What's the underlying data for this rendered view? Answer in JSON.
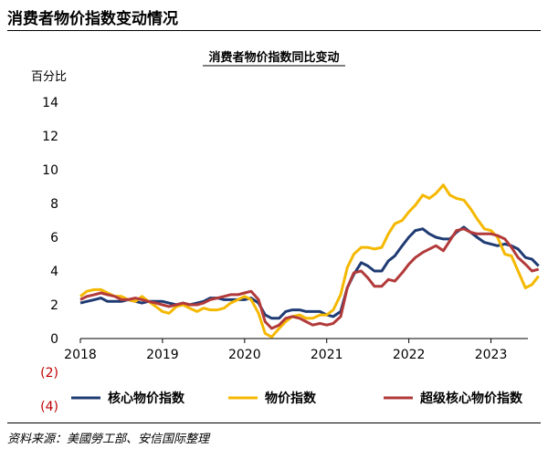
{
  "page": {
    "title": "消费者物价指数变动情况",
    "source": "资料来源：美國勞工部、安信国际整理"
  },
  "chart_data": {
    "type": "line",
    "title": "消费者物价指数同比变动",
    "yunit": "百分比",
    "ylim": [
      -4,
      14
    ],
    "yticks": [
      14,
      12,
      10,
      8,
      6,
      4,
      2,
      0,
      -2,
      -4
    ],
    "ytick_labels": [
      "14",
      "12",
      "10",
      "8",
      "6",
      "4",
      "2",
      "0",
      "(2)",
      "(4)"
    ],
    "xlim": [
      2018.0,
      2023.45
    ],
    "xticks": [
      2018,
      2019,
      2020,
      2021,
      2022,
      2023
    ],
    "xtick_labels": [
      "2018",
      "2019",
      "2020",
      "2021",
      "2022",
      "2023"
    ],
    "legend_position": "bottom",
    "series": [
      {
        "name": "核心物价指数",
        "color": "#1f3b73",
        "points": [
          [
            2018.0,
            2.1
          ],
          [
            2018.08,
            2.2
          ],
          [
            2018.17,
            2.3
          ],
          [
            2018.25,
            2.4
          ],
          [
            2018.33,
            2.2
          ],
          [
            2018.42,
            2.2
          ],
          [
            2018.5,
            2.2
          ],
          [
            2018.58,
            2.3
          ],
          [
            2018.67,
            2.2
          ],
          [
            2018.75,
            2.1
          ],
          [
            2018.83,
            2.2
          ],
          [
            2018.92,
            2.2
          ],
          [
            2019.0,
            2.2
          ],
          [
            2019.08,
            2.1
          ],
          [
            2019.17,
            2.0
          ],
          [
            2019.25,
            2.1
          ],
          [
            2019.33,
            2.0
          ],
          [
            2019.42,
            2.1
          ],
          [
            2019.5,
            2.2
          ],
          [
            2019.58,
            2.4
          ],
          [
            2019.67,
            2.4
          ],
          [
            2019.75,
            2.3
          ],
          [
            2019.83,
            2.3
          ],
          [
            2019.92,
            2.3
          ],
          [
            2020.0,
            2.3
          ],
          [
            2020.08,
            2.4
          ],
          [
            2020.17,
            2.1
          ],
          [
            2020.25,
            1.4
          ],
          [
            2020.33,
            1.2
          ],
          [
            2020.42,
            1.2
          ],
          [
            2020.5,
            1.6
          ],
          [
            2020.58,
            1.7
          ],
          [
            2020.67,
            1.7
          ],
          [
            2020.75,
            1.6
          ],
          [
            2020.83,
            1.6
          ],
          [
            2020.92,
            1.6
          ],
          [
            2021.0,
            1.4
          ],
          [
            2021.08,
            1.3
          ],
          [
            2021.17,
            1.6
          ],
          [
            2021.25,
            3.0
          ],
          [
            2021.33,
            3.8
          ],
          [
            2021.42,
            4.5
          ],
          [
            2021.5,
            4.3
          ],
          [
            2021.58,
            4.0
          ],
          [
            2021.67,
            4.0
          ],
          [
            2021.75,
            4.6
          ],
          [
            2021.83,
            4.9
          ],
          [
            2021.92,
            5.5
          ],
          [
            2022.0,
            6.0
          ],
          [
            2022.08,
            6.4
          ],
          [
            2022.17,
            6.5
          ],
          [
            2022.25,
            6.2
          ],
          [
            2022.33,
            6.0
          ],
          [
            2022.42,
            5.9
          ],
          [
            2022.5,
            5.9
          ],
          [
            2022.58,
            6.3
          ],
          [
            2022.67,
            6.6
          ],
          [
            2022.75,
            6.3
          ],
          [
            2022.83,
            6.0
          ],
          [
            2022.92,
            5.7
          ],
          [
            2023.0,
            5.6
          ],
          [
            2023.08,
            5.5
          ],
          [
            2023.17,
            5.6
          ],
          [
            2023.25,
            5.5
          ],
          [
            2023.33,
            5.3
          ],
          [
            2023.42,
            4.8
          ],
          [
            2023.5,
            4.7
          ],
          [
            2023.58,
            4.3
          ]
        ]
      },
      {
        "name": "物价指数",
        "color": "#f5b800",
        "points": [
          [
            2018.0,
            2.5
          ],
          [
            2018.08,
            2.8
          ],
          [
            2018.17,
            2.9
          ],
          [
            2018.25,
            2.9
          ],
          [
            2018.33,
            2.7
          ],
          [
            2018.42,
            2.5
          ],
          [
            2018.5,
            2.5
          ],
          [
            2018.58,
            2.3
          ],
          [
            2018.67,
            2.2
          ],
          [
            2018.75,
            2.5
          ],
          [
            2018.83,
            2.2
          ],
          [
            2018.92,
            1.9
          ],
          [
            2019.0,
            1.6
          ],
          [
            2019.08,
            1.5
          ],
          [
            2019.17,
            1.9
          ],
          [
            2019.25,
            2.0
          ],
          [
            2019.33,
            1.8
          ],
          [
            2019.42,
            1.6
          ],
          [
            2019.5,
            1.8
          ],
          [
            2019.58,
            1.7
          ],
          [
            2019.67,
            1.7
          ],
          [
            2019.75,
            1.8
          ],
          [
            2019.83,
            2.1
          ],
          [
            2019.92,
            2.3
          ],
          [
            2020.0,
            2.5
          ],
          [
            2020.08,
            2.3
          ],
          [
            2020.17,
            1.5
          ],
          [
            2020.25,
            0.3
          ],
          [
            2020.33,
            0.1
          ],
          [
            2020.42,
            0.6
          ],
          [
            2020.5,
            1.0
          ],
          [
            2020.58,
            1.3
          ],
          [
            2020.67,
            1.4
          ],
          [
            2020.75,
            1.2
          ],
          [
            2020.83,
            1.2
          ],
          [
            2020.92,
            1.4
          ],
          [
            2021.0,
            1.4
          ],
          [
            2021.08,
            1.7
          ],
          [
            2021.17,
            2.6
          ],
          [
            2021.25,
            4.2
          ],
          [
            2021.33,
            5.0
          ],
          [
            2021.42,
            5.4
          ],
          [
            2021.5,
            5.4
          ],
          [
            2021.58,
            5.3
          ],
          [
            2021.67,
            5.4
          ],
          [
            2021.75,
            6.2
          ],
          [
            2021.83,
            6.8
          ],
          [
            2021.92,
            7.0
          ],
          [
            2022.0,
            7.5
          ],
          [
            2022.08,
            7.9
          ],
          [
            2022.17,
            8.5
          ],
          [
            2022.25,
            8.3
          ],
          [
            2022.33,
            8.6
          ],
          [
            2022.42,
            9.1
          ],
          [
            2022.5,
            8.5
          ],
          [
            2022.58,
            8.3
          ],
          [
            2022.67,
            8.2
          ],
          [
            2022.75,
            7.7
          ],
          [
            2022.83,
            7.1
          ],
          [
            2022.92,
            6.5
          ],
          [
            2023.0,
            6.4
          ],
          [
            2023.08,
            6.0
          ],
          [
            2023.17,
            5.0
          ],
          [
            2023.25,
            4.9
          ],
          [
            2023.33,
            4.0
          ],
          [
            2023.42,
            3.0
          ],
          [
            2023.5,
            3.2
          ],
          [
            2023.58,
            3.7
          ]
        ]
      },
      {
        "name": "超级核心物价指数",
        "color": "#b23a3a",
        "points": [
          [
            2018.0,
            2.3
          ],
          [
            2018.08,
            2.5
          ],
          [
            2018.17,
            2.6
          ],
          [
            2018.25,
            2.7
          ],
          [
            2018.33,
            2.6
          ],
          [
            2018.42,
            2.5
          ],
          [
            2018.5,
            2.3
          ],
          [
            2018.58,
            2.3
          ],
          [
            2018.67,
            2.4
          ],
          [
            2018.75,
            2.3
          ],
          [
            2018.83,
            2.2
          ],
          [
            2018.92,
            2.1
          ],
          [
            2019.0,
            2.0
          ],
          [
            2019.08,
            1.9
          ],
          [
            2019.17,
            2.0
          ],
          [
            2019.25,
            2.1
          ],
          [
            2019.33,
            2.0
          ],
          [
            2019.42,
            2.0
          ],
          [
            2019.5,
            2.1
          ],
          [
            2019.58,
            2.3
          ],
          [
            2019.67,
            2.4
          ],
          [
            2019.75,
            2.5
          ],
          [
            2019.83,
            2.6
          ],
          [
            2019.92,
            2.6
          ],
          [
            2020.0,
            2.7
          ],
          [
            2020.08,
            2.8
          ],
          [
            2020.17,
            2.3
          ],
          [
            2020.25,
            1.0
          ],
          [
            2020.33,
            0.6
          ],
          [
            2020.42,
            0.8
          ],
          [
            2020.5,
            1.2
          ],
          [
            2020.58,
            1.3
          ],
          [
            2020.67,
            1.2
          ],
          [
            2020.75,
            1.0
          ],
          [
            2020.83,
            0.8
          ],
          [
            2020.92,
            0.9
          ],
          [
            2021.0,
            0.8
          ],
          [
            2021.08,
            0.9
          ],
          [
            2021.17,
            1.3
          ],
          [
            2021.25,
            3.0
          ],
          [
            2021.33,
            3.9
          ],
          [
            2021.42,
            4.0
          ],
          [
            2021.5,
            3.6
          ],
          [
            2021.58,
            3.1
          ],
          [
            2021.67,
            3.1
          ],
          [
            2021.75,
            3.5
          ],
          [
            2021.83,
            3.4
          ],
          [
            2021.92,
            3.9
          ],
          [
            2022.0,
            4.4
          ],
          [
            2022.08,
            4.8
          ],
          [
            2022.17,
            5.1
          ],
          [
            2022.25,
            5.3
          ],
          [
            2022.33,
            5.5
          ],
          [
            2022.42,
            5.2
          ],
          [
            2022.5,
            5.8
          ],
          [
            2022.58,
            6.4
          ],
          [
            2022.67,
            6.5
          ],
          [
            2022.75,
            6.3
          ],
          [
            2022.83,
            6.2
          ],
          [
            2022.92,
            6.2
          ],
          [
            2023.0,
            6.2
          ],
          [
            2023.08,
            6.1
          ],
          [
            2023.17,
            5.9
          ],
          [
            2023.25,
            5.4
          ],
          [
            2023.33,
            4.8
          ],
          [
            2023.42,
            4.4
          ],
          [
            2023.5,
            4.0
          ],
          [
            2023.58,
            4.1
          ]
        ]
      }
    ]
  }
}
